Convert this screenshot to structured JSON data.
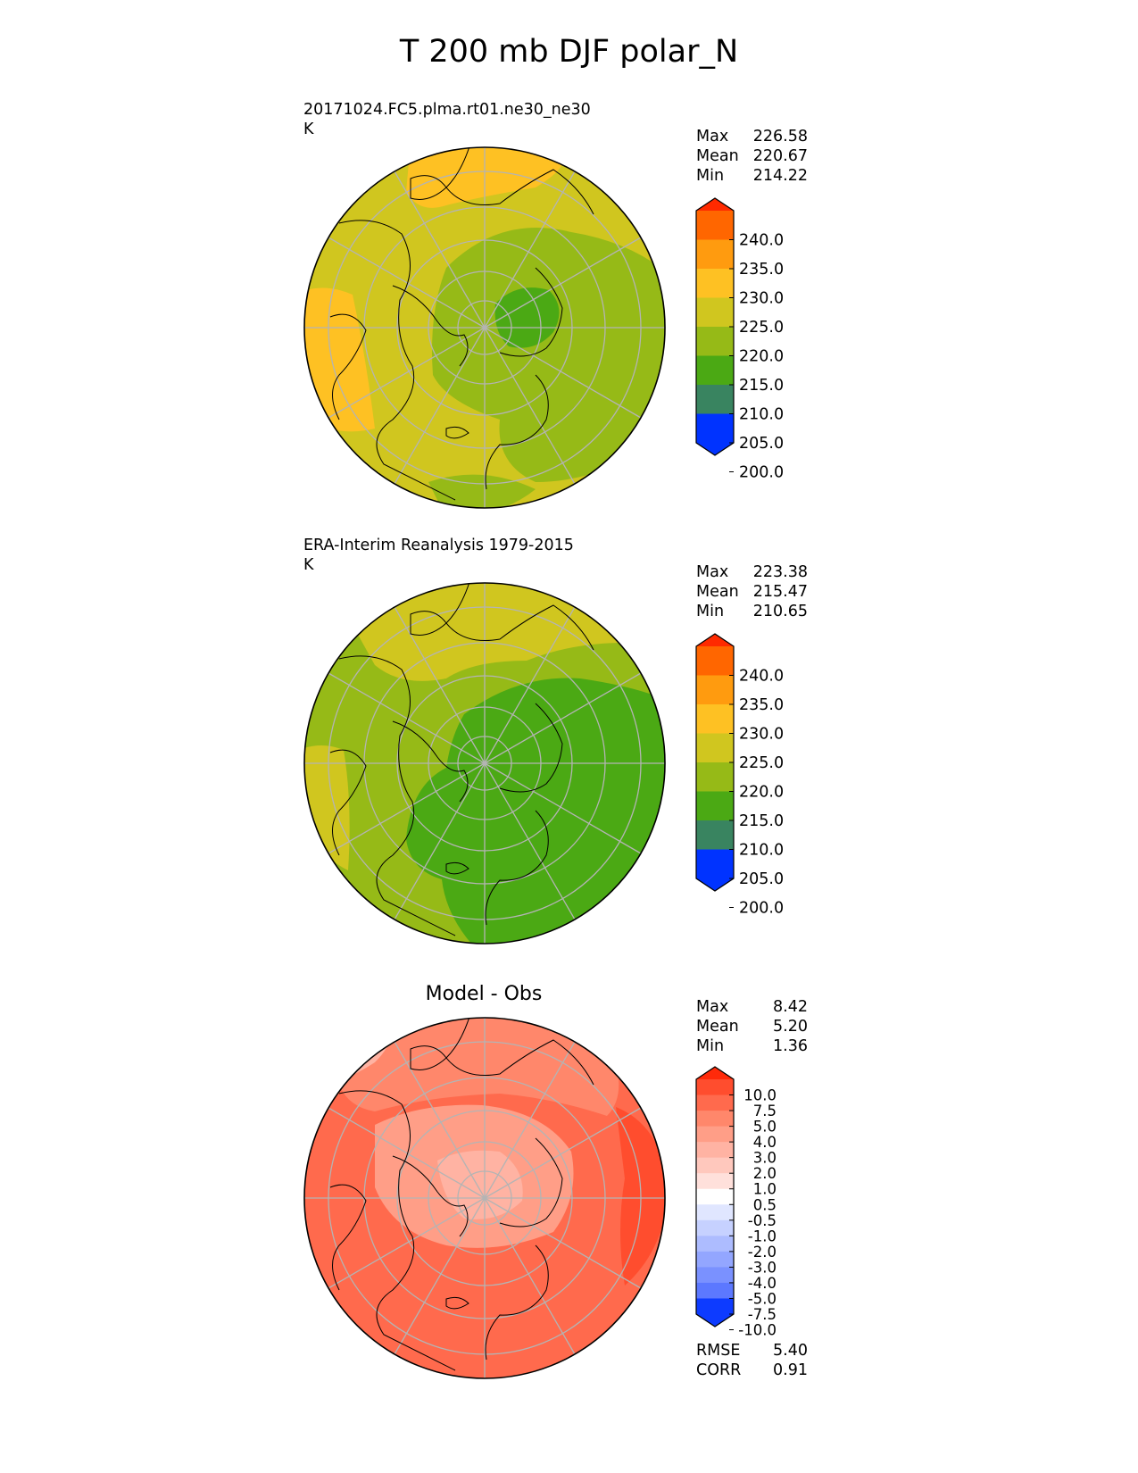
{
  "title": "T 200 mb DJF polar_N",
  "panels": [
    {
      "title_line1": "20171024.FC5.plma.rt01.ne30_ne30",
      "title_line2": "K",
      "stats": {
        "max_label": "Max",
        "max": "226.58",
        "mean_label": "Mean",
        "mean": "220.67",
        "min_label": "Min",
        "min": "214.22"
      }
    },
    {
      "title_line1": "ERA-Interim Reanalysis 1979-2015",
      "title_line2": "K",
      "stats": {
        "max_label": "Max",
        "max": "223.38",
        "mean_label": "Mean",
        "mean": "215.47",
        "min_label": "Min",
        "min": "210.65"
      }
    },
    {
      "title_center": "Model - Obs",
      "stats": {
        "max_label": "Max",
        "max": "8.42",
        "mean_label": "Mean",
        "mean": "5.20",
        "min_label": "Min",
        "min": "1.36"
      },
      "metrics": {
        "rmse_label": "RMSE",
        "rmse": "5.40",
        "corr_label": "CORR",
        "corr": "0.91"
      }
    }
  ],
  "chart_data": [
    {
      "type": "heatmap",
      "projection": "polar stereographic, North Pole",
      "units": "K",
      "colorbar": {
        "ticks": [
          "240.0",
          "235.0",
          "230.0",
          "225.0",
          "220.0",
          "215.0",
          "210.0",
          "205.0",
          "200.0"
        ],
        "colors": [
          "#ff2a00",
          "#ff6600",
          "#ff9b0f",
          "#fec123",
          "#d0c61f",
          "#96ba17",
          "#4ba914",
          "#398460",
          "#00639a",
          "#0033ff"
        ]
      },
      "stats": {
        "max": 226.58,
        "mean": 220.67,
        "min": 214.22
      }
    },
    {
      "type": "heatmap",
      "projection": "polar stereographic, North Pole",
      "units": "K",
      "colorbar": {
        "ticks": [
          "240.0",
          "235.0",
          "230.0",
          "225.0",
          "220.0",
          "215.0",
          "210.0",
          "205.0",
          "200.0"
        ],
        "colors": [
          "#ff2a00",
          "#ff6600",
          "#ff9b0f",
          "#fec123",
          "#d0c61f",
          "#96ba17",
          "#4ba914",
          "#398460",
          "#00639a",
          "#0033ff"
        ]
      },
      "stats": {
        "max": 223.38,
        "mean": 215.47,
        "min": 210.65
      }
    },
    {
      "type": "heatmap",
      "projection": "polar stereographic, North Pole",
      "colorbar": {
        "ticks": [
          "10.0",
          "7.5",
          "5.0",
          "4.0",
          "3.0",
          "2.0",
          "1.0",
          "0.5",
          "-0.5",
          "-1.0",
          "-2.0",
          "-3.0",
          "-4.0",
          "-5.0",
          "-7.5",
          "-10.0"
        ],
        "colors": [
          "#ff2a0a",
          "#ff4d2e",
          "#ff6a4d",
          "#ff876b",
          "#ff9e87",
          "#ffb3a3",
          "#ffc8bd",
          "#ffe0db",
          "#ffffff",
          "#e0e6ff",
          "#c6d1ff",
          "#adbcff",
          "#93a6ff",
          "#7a91ff",
          "#5c78ff",
          "#3a5cff",
          "#0d3bff"
        ]
      },
      "stats": {
        "max": 8.42,
        "mean": 5.2,
        "min": 1.36
      },
      "metrics": {
        "rmse": 5.4,
        "corr": 0.91
      }
    }
  ]
}
